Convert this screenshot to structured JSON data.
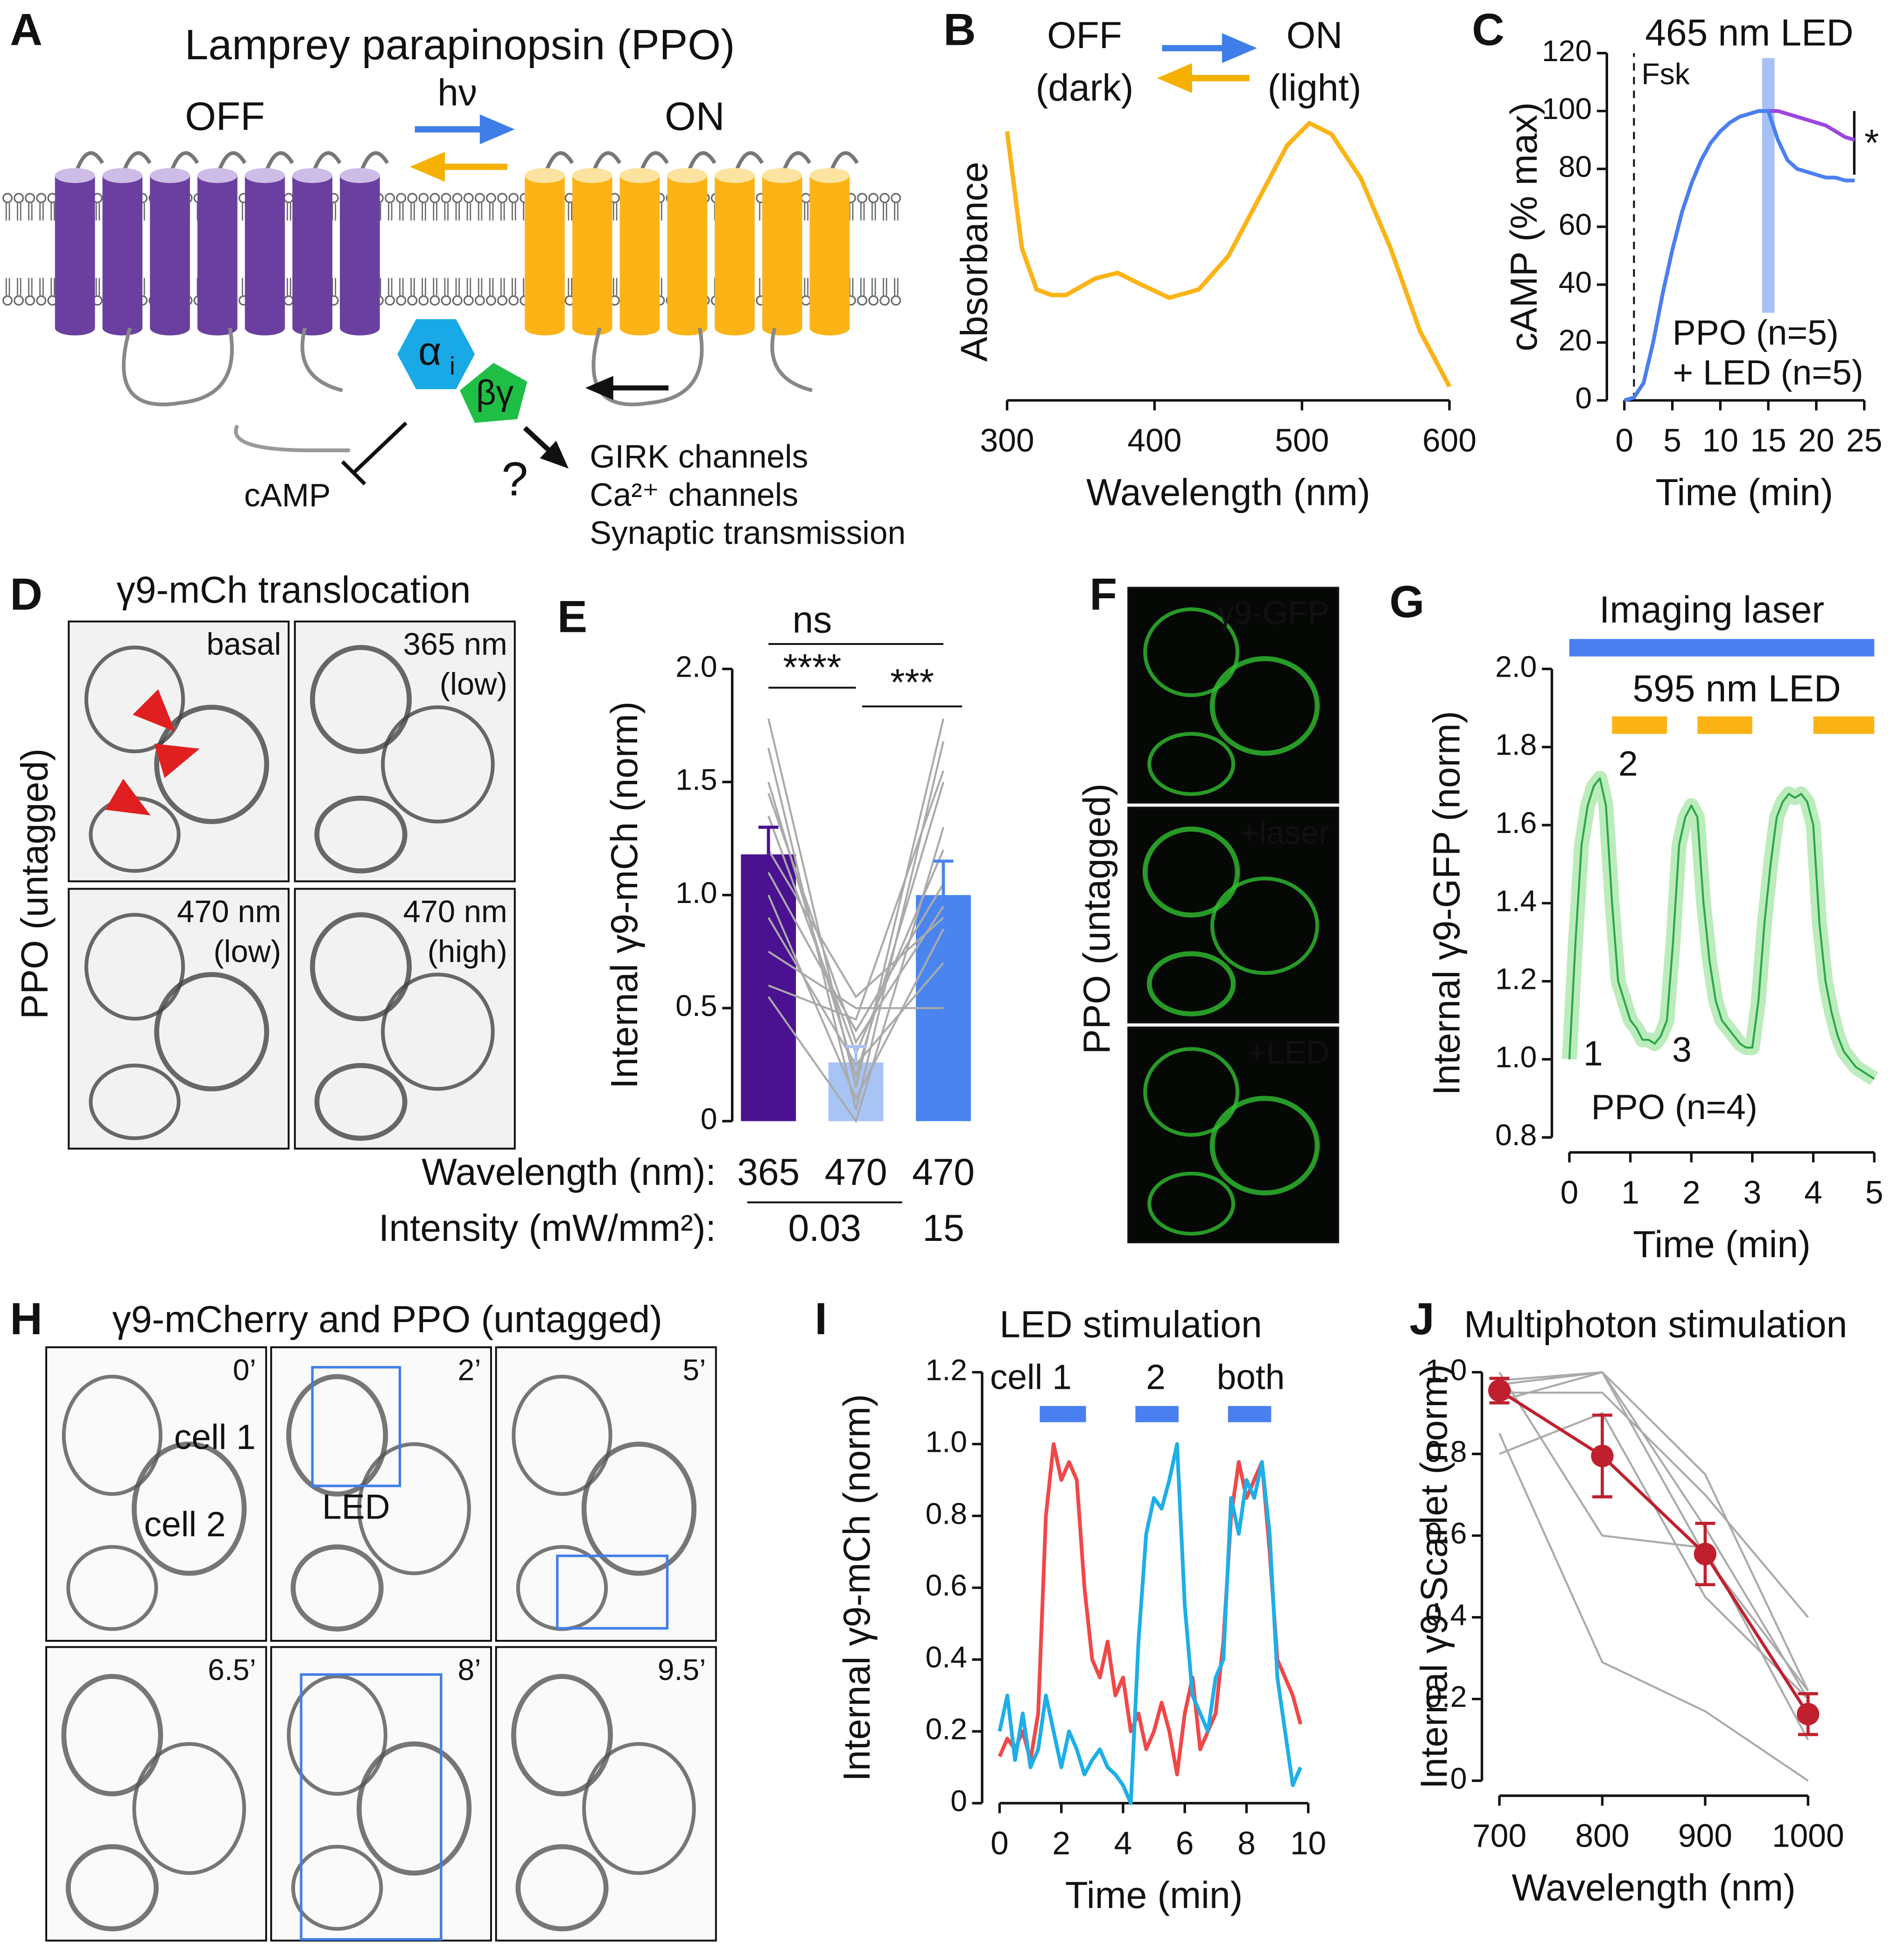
{
  "panel_a": {
    "label": "A",
    "title": "Lamprey parapinopsin (PPO)",
    "off": "OFF",
    "on": "ON",
    "light": "hν",
    "alpha": "α",
    "alpha_sub": "i",
    "beta_gamma": "βγ",
    "camp": "cAMP",
    "question": "?",
    "effectors": [
      "GIRK channels",
      "Ca²⁺ channels",
      "Synaptic transmission"
    ]
  },
  "panel_d": {
    "label": "D",
    "title": "γ9-mCh translocation",
    "side_label": "PPO (untagged)",
    "frames": [
      [
        "basal"
      ],
      [
        "365 nm",
        "(low)"
      ],
      [
        "470 nm",
        "(low)"
      ],
      [
        "470 nm",
        "(high)"
      ]
    ]
  },
  "panel_f": {
    "label": "F",
    "side_label": "PPO (untagged)",
    "frames": [
      "γ9-GFP",
      "+laser",
      "+LED"
    ]
  },
  "panel_h": {
    "label": "H",
    "title": "γ9-mCherry and PPO (untagged)",
    "frames": [
      "0’",
      "2’",
      "5’",
      "6.5’",
      "8’",
      "9.5’"
    ],
    "cell_labels": [
      "cell 1",
      "cell 2"
    ],
    "led": "LED"
  },
  "chart_data": [
    {
      "label": "B",
      "type": "line",
      "header": {
        "off": "OFF",
        "dark": "(dark)",
        "on": "ON",
        "light": "(light)"
      },
      "xlabel": "Wavelength (nm)",
      "ylabel": "Absorbance",
      "xlim": [
        300,
        600
      ],
      "xticks": [
        300,
        400,
        500,
        600
      ],
      "ylim": [
        0,
        1
      ],
      "x": [
        300,
        310,
        320,
        330,
        340,
        360,
        375,
        390,
        410,
        430,
        450,
        470,
        490,
        505,
        520,
        540,
        560,
        580,
        600
      ],
      "values": [
        0.97,
        0.55,
        0.4,
        0.38,
        0.38,
        0.44,
        0.46,
        0.42,
        0.37,
        0.4,
        0.52,
        0.72,
        0.92,
        1.0,
        0.96,
        0.8,
        0.55,
        0.25,
        0.05
      ],
      "color": "#fbb316"
    },
    {
      "label": "C",
      "type": "line",
      "title": "465 nm LED",
      "forskolin": "Fsk",
      "significance": "*",
      "forskolin_time": 1,
      "led_time": 15,
      "xlabel": "Time (min)",
      "ylabel": "cAMP (% max)",
      "xlim": [
        0,
        25
      ],
      "xticks": [
        0,
        5,
        10,
        15,
        20,
        25
      ],
      "ylim": [
        0,
        120
      ],
      "yticks": [
        0,
        20,
        40,
        60,
        80,
        100,
        120
      ],
      "x": [
        0,
        1,
        2,
        3,
        4,
        5,
        6,
        7,
        8,
        9,
        10,
        11,
        12,
        13,
        14,
        15,
        16,
        17,
        18,
        19,
        20,
        21,
        22,
        23,
        24
      ],
      "series": [
        {
          "name": "PPO (n=5)",
          "color": "#9b45e0",
          "values": [
            0,
            1,
            6,
            20,
            37,
            52,
            65,
            75,
            83,
            89,
            93,
            96,
            98,
            99,
            100,
            100,
            100,
            99,
            98,
            97,
            96,
            95,
            93,
            91,
            90
          ]
        },
        {
          "name": "+ LED (n=5)",
          "color": "#4a7ff0",
          "values": [
            0,
            1,
            6,
            20,
            37,
            52,
            65,
            75,
            83,
            89,
            93,
            96,
            98,
            99,
            100,
            100,
            90,
            83,
            80,
            79,
            78,
            77,
            77,
            76,
            76
          ]
        }
      ]
    },
    {
      "label": "E",
      "type": "bar",
      "ylabel": "Internal γ9-mCh (norm)",
      "ylim": [
        0,
        2
      ],
      "yticks": [
        0,
        0.5,
        {
          "value": 1,
          "label": "1.0"
        },
        1.5,
        {
          "value": 2,
          "label": "2.0"
        }
      ],
      "row_labels": [
        "Wavelength (nm):",
        "Intensity (mW/mm²):"
      ],
      "categories": [
        "365",
        "470",
        "470"
      ],
      "intensity_labels": [
        "0.03",
        "15"
      ],
      "values": [
        1.18,
        0.26,
        1.0
      ],
      "errors": [
        0.12,
        0.07,
        0.15
      ],
      "colors": [
        "#4a1190",
        "#a8c4f5",
        "#4a85ef"
      ],
      "paired_values": [
        [
          1.78,
          0.15,
          1.78
        ],
        [
          1.65,
          0.05,
          1.68
        ],
        [
          1.5,
          0.2,
          1.5
        ],
        [
          1.35,
          0.3,
          1.2
        ],
        [
          1.2,
          0.55,
          0.9
        ],
        [
          1.1,
          0.4,
          1.05
        ],
        [
          1.0,
          0.1,
          0.85
        ],
        [
          0.9,
          0.25,
          0.7
        ],
        [
          0.75,
          0.5,
          0.5
        ],
        [
          0.6,
          0.45,
          1.55
        ],
        [
          1.45,
          0.35,
          0.95
        ],
        [
          0.55,
          0.0,
          1.3
        ]
      ],
      "significance": [
        "ns",
        "****",
        "***"
      ]
    },
    {
      "label": "G",
      "type": "line",
      "annotations": [
        "1",
        "2",
        "3"
      ],
      "bars": [
        {
          "label": "Imaging laser",
          "color": "#4a7ff0",
          "ranges": [
            [
              0,
              5
            ]
          ]
        },
        {
          "label": "595 nm LED",
          "color": "#fbb316",
          "ranges": [
            [
              0.7,
              1.6
            ],
            [
              2.1,
              3.0
            ],
            [
              4.0,
              5.0
            ]
          ]
        }
      ],
      "xlabel": "Time (min)",
      "ylabel": "Internal γ9-GFP (norm)",
      "xlim": [
        0,
        5
      ],
      "xticks": [
        0,
        1,
        2,
        3,
        4,
        5
      ],
      "ylim": [
        0.8,
        2.0
      ],
      "yticks": [
        0.8,
        {
          "value": 1,
          "label": "1.0"
        },
        1.2,
        1.4,
        1.6,
        1.8,
        {
          "value": 2,
          "label": "2.0"
        }
      ],
      "x": [
        0,
        0.1,
        0.2,
        0.3,
        0.4,
        0.5,
        0.6,
        0.7,
        0.8,
        0.9,
        1.0,
        1.1,
        1.2,
        1.3,
        1.4,
        1.5,
        1.6,
        1.7,
        1.8,
        1.9,
        2.0,
        2.1,
        2.2,
        2.3,
        2.4,
        2.5,
        2.6,
        2.7,
        2.8,
        2.9,
        3.0,
        3.1,
        3.2,
        3.3,
        3.4,
        3.5,
        3.6,
        3.7,
        3.8,
        3.9,
        4.0,
        4.1,
        4.2,
        4.3,
        4.4,
        4.5,
        4.6,
        4.7,
        4.8,
        4.9,
        5.0
      ],
      "series": [
        {
          "name": "PPO (n=4)",
          "color": "#2aa84a",
          "values": [
            1.0,
            1.3,
            1.55,
            1.65,
            1.7,
            1.72,
            1.65,
            1.4,
            1.2,
            1.15,
            1.1,
            1.08,
            1.05,
            1.05,
            1.04,
            1.06,
            1.1,
            1.3,
            1.55,
            1.62,
            1.65,
            1.62,
            1.4,
            1.25,
            1.15,
            1.1,
            1.08,
            1.06,
            1.04,
            1.03,
            1.03,
            1.15,
            1.35,
            1.5,
            1.62,
            1.66,
            1.68,
            1.67,
            1.68,
            1.66,
            1.6,
            1.35,
            1.2,
            1.12,
            1.06,
            1.02,
            1.0,
            0.98,
            0.97,
            0.96,
            0.95
          ]
        }
      ]
    },
    {
      "label": "I",
      "type": "line",
      "title": "LED stimulation",
      "stim_labels": [
        "cell 1",
        "2",
        "both"
      ],
      "stim_color": "#4a7ff0",
      "stim_ranges": [
        [
          1.3,
          2.8
        ],
        [
          4.4,
          5.8
        ],
        [
          7.4,
          8.8
        ]
      ],
      "xlabel": "Time (min)",
      "ylabel": "Internal γ9-mCh (norm)",
      "xlim": [
        0,
        10
      ],
      "xticks": [
        0,
        2,
        4,
        6,
        8,
        10
      ],
      "ylim": [
        0,
        1.2
      ],
      "yticks": [
        0,
        0.2,
        0.4,
        0.6,
        0.8,
        {
          "value": 1,
          "label": "1.0"
        },
        1.2
      ],
      "x": [
        0,
        0.25,
        0.5,
        0.75,
        1.0,
        1.25,
        1.5,
        1.75,
        2.0,
        2.25,
        2.5,
        2.75,
        3.0,
        3.25,
        3.5,
        3.75,
        4.0,
        4.25,
        4.5,
        4.75,
        5.0,
        5.25,
        5.5,
        5.75,
        6.0,
        6.25,
        6.5,
        6.75,
        7.0,
        7.25,
        7.5,
        7.75,
        8.0,
        8.25,
        8.5,
        8.75,
        9.0,
        9.25,
        9.5,
        9.75
      ],
      "series": [
        {
          "color": "#f04848",
          "values": [
            0.13,
            0.18,
            0.15,
            0.2,
            0.12,
            0.25,
            0.8,
            1.0,
            0.9,
            0.95,
            0.9,
            0.6,
            0.4,
            0.35,
            0.45,
            0.3,
            0.35,
            0.2,
            0.25,
            0.15,
            0.2,
            0.28,
            0.2,
            0.08,
            0.25,
            0.35,
            0.15,
            0.2,
            0.25,
            0.45,
            0.8,
            0.95,
            0.85,
            0.9,
            0.95,
            0.7,
            0.4,
            0.35,
            0.3,
            0.22
          ]
        },
        {
          "color": "#1eaee8",
          "values": [
            0.2,
            0.3,
            0.12,
            0.25,
            0.1,
            0.15,
            0.3,
            0.2,
            0.1,
            0.2,
            0.15,
            0.08,
            0.12,
            0.15,
            0.1,
            0.08,
            0.05,
            0.0,
            0.45,
            0.75,
            0.85,
            0.82,
            0.9,
            1.0,
            0.55,
            0.3,
            0.25,
            0.2,
            0.35,
            0.4,
            0.85,
            0.75,
            0.9,
            0.85,
            0.95,
            0.75,
            0.35,
            0.2,
            0.05,
            0.1
          ]
        }
      ]
    },
    {
      "label": "J",
      "type": "line",
      "title": "Multiphoton stimulation",
      "xlabel": "Wavelength (nm)",
      "ylabel": "Internal γ9-Scarlet (norm)",
      "xlim": [
        700,
        1000
      ],
      "xticks": [
        700,
        800,
        900,
        1000
      ],
      "ylim": [
        0,
        1
      ],
      "yticks": [
        0,
        0.2,
        0.4,
        0.6,
        0.8,
        {
          "value": 1,
          "label": "1.0"
        }
      ],
      "x": [
        700,
        800,
        900,
        1000
      ],
      "values": [
        0.955,
        0.795,
        0.555,
        0.163
      ],
      "errors": [
        0.03,
        0.1,
        0.075,
        0.05
      ],
      "color": "#c0202e",
      "individual_values": [
        [
          0.97,
          1.0,
          0.75,
          0.22
        ],
        [
          0.95,
          0.95,
          0.7,
          0.4
        ],
        [
          0.93,
          1.0,
          0.62,
          0.2
        ],
        [
          0.85,
          0.29,
          0.17,
          0.0
        ],
        [
          0.8,
          0.9,
          0.45,
          0.2
        ],
        [
          1.0,
          0.6,
          0.57,
          0.1
        ],
        [
          0.98,
          1.0,
          0.55,
          0.22
        ]
      ]
    }
  ]
}
